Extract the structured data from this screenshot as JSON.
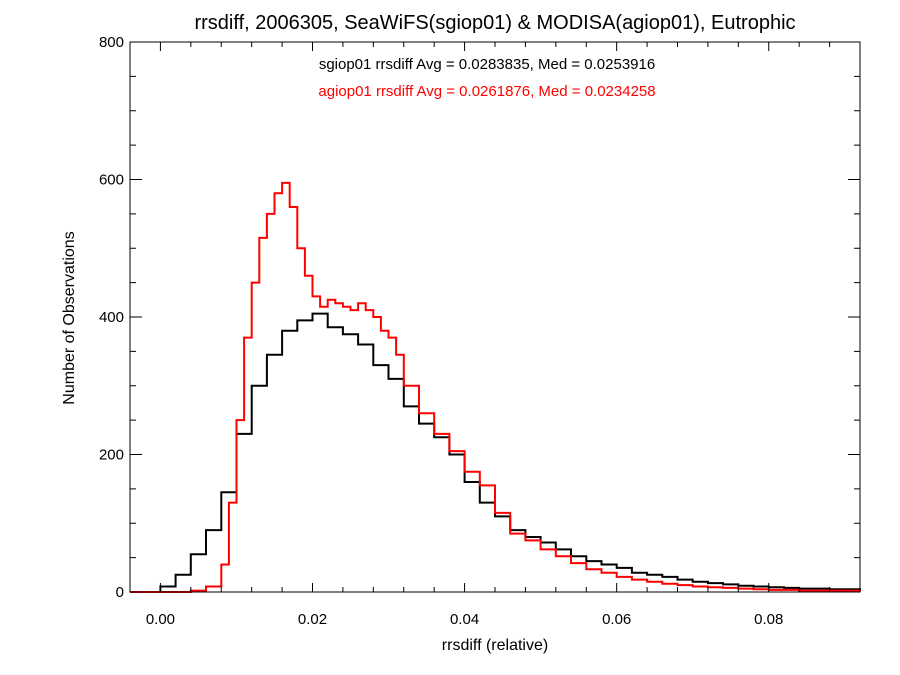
{
  "chart_data": {
    "type": "line",
    "title": "rrsdiff, 2006305, SeaWiFS(sgiop01) & MODISA(agiop01), Eutrophic",
    "xlabel": "rrsdiff (relative)",
    "ylabel": "Number of Observations",
    "xlim": [
      -0.004,
      0.092
    ],
    "ylim": [
      0,
      800
    ],
    "x_ticks": [
      {
        "value": 0.0,
        "label": "0.00"
      },
      {
        "value": 0.02,
        "label": "0.02"
      },
      {
        "value": 0.04,
        "label": "0.04"
      },
      {
        "value": 0.06,
        "label": "0.06"
      },
      {
        "value": 0.08,
        "label": "0.08"
      }
    ],
    "y_ticks": [
      {
        "value": 0,
        "label": "0"
      },
      {
        "value": 200,
        "label": "200"
      },
      {
        "value": 400,
        "label": "400"
      },
      {
        "value": 600,
        "label": "600"
      },
      {
        "value": 800,
        "label": "800"
      }
    ],
    "grid": false,
    "annotations": [
      {
        "text": "sgiop01 rrsdiff Avg = 0.0283835, Med = 0.0253916",
        "color": "#000000"
      },
      {
        "text": "agiop01 rrsdiff Avg = 0.0261876, Med = 0.0234258",
        "color": "#ff0000"
      }
    ],
    "series": [
      {
        "color": "#000000",
        "step": true,
        "x": [
          -0.004,
          0.0,
          0.002,
          0.004,
          0.006,
          0.008,
          0.01,
          0.012,
          0.014,
          0.016,
          0.018,
          0.02,
          0.022,
          0.024,
          0.026,
          0.028,
          0.03,
          0.032,
          0.034,
          0.036,
          0.038,
          0.04,
          0.042,
          0.044,
          0.046,
          0.048,
          0.05,
          0.052,
          0.054,
          0.056,
          0.058,
          0.06,
          0.062,
          0.064,
          0.066,
          0.068,
          0.07,
          0.072,
          0.074,
          0.076,
          0.078,
          0.08,
          0.082,
          0.084,
          0.086,
          0.088,
          0.09,
          0.092
        ],
        "y": [
          0,
          8,
          25,
          55,
          90,
          145,
          230,
          300,
          345,
          380,
          395,
          405,
          385,
          375,
          360,
          330,
          310,
          270,
          245,
          225,
          200,
          160,
          130,
          110,
          90,
          80,
          72,
          62,
          52,
          45,
          40,
          35,
          28,
          25,
          22,
          18,
          15,
          13,
          11,
          9,
          8,
          7,
          6,
          5,
          5,
          4,
          4,
          3
        ]
      },
      {
        "color": "#ff0000",
        "step": true,
        "x": [
          -0.004,
          0.0,
          0.002,
          0.004,
          0.006,
          0.008,
          0.009,
          0.01,
          0.011,
          0.012,
          0.013,
          0.014,
          0.015,
          0.016,
          0.017,
          0.018,
          0.019,
          0.02,
          0.021,
          0.022,
          0.023,
          0.024,
          0.025,
          0.026,
          0.027,
          0.028,
          0.029,
          0.03,
          0.031,
          0.032,
          0.034,
          0.036,
          0.038,
          0.04,
          0.042,
          0.044,
          0.046,
          0.048,
          0.05,
          0.052,
          0.054,
          0.056,
          0.058,
          0.06,
          0.062,
          0.064,
          0.066,
          0.068,
          0.07,
          0.072,
          0.074,
          0.076,
          0.078,
          0.08,
          0.082,
          0.084,
          0.086,
          0.088,
          0.09,
          0.092
        ],
        "y": [
          0,
          0,
          0,
          2,
          8,
          40,
          130,
          250,
          370,
          450,
          515,
          550,
          580,
          595,
          560,
          500,
          460,
          430,
          415,
          425,
          420,
          415,
          410,
          420,
          410,
          400,
          380,
          370,
          345,
          300,
          260,
          230,
          205,
          175,
          155,
          115,
          85,
          75,
          62,
          52,
          42,
          33,
          28,
          22,
          18,
          15,
          12,
          10,
          8,
          7,
          6,
          5,
          4,
          3,
          3,
          2,
          2,
          2,
          2,
          1
        ]
      }
    ]
  }
}
